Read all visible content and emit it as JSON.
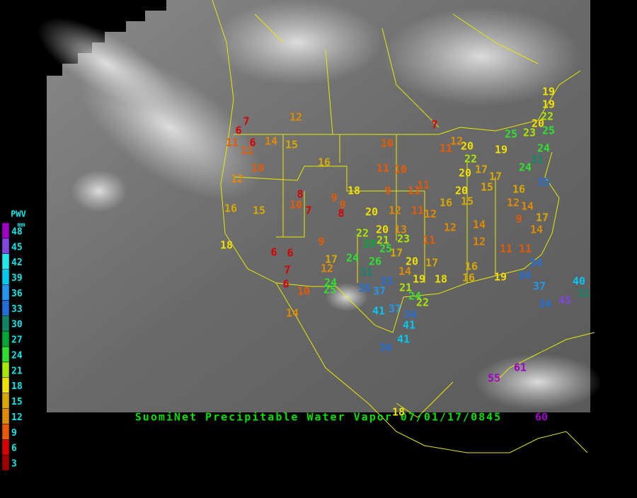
{
  "title": "SuomiNet Precipitable Water Vapor 07/01/17/0845",
  "legend": {
    "title": "PWV",
    "unit": "mm",
    "ticks": [
      3,
      6,
      9,
      12,
      15,
      18,
      21,
      24,
      27,
      30,
      33,
      36,
      39,
      42,
      45,
      48
    ],
    "colors": [
      "#a00000",
      "#d80000",
      "#e85a00",
      "#e08a00",
      "#d8a800",
      "#f0e000",
      "#a8e800",
      "#30e030",
      "#00a838",
      "#108868",
      "#2070d8",
      "#2098f0",
      "#00c8f0",
      "#20e8e8",
      "#8048e0",
      "#a000c8"
    ]
  },
  "stations": [
    12,
    6,
    7,
    6,
    11,
    11,
    14,
    15,
    10,
    12,
    16,
    10,
    7,
    11,
    12,
    20,
    22,
    19,
    25,
    23,
    19,
    19,
    22,
    20,
    25,
    24,
    31,
    24,
    11,
    10,
    20,
    17,
    17,
    35,
    16,
    15,
    8,
    10,
    7,
    9,
    18,
    9,
    8,
    9,
    11,
    11,
    20,
    15,
    16,
    12,
    14,
    17,
    9,
    14,
    16,
    15,
    20,
    12,
    11,
    12,
    12,
    14,
    18,
    6,
    6,
    7,
    6,
    10,
    9,
    17,
    12,
    22,
    20,
    13,
    21,
    23,
    11,
    28,
    25,
    24,
    26,
    17,
    20,
    17,
    12,
    11,
    11,
    34,
    31,
    14,
    19,
    18,
    16,
    16,
    19,
    34,
    33,
    35,
    37,
    24,
    25,
    21,
    24,
    22,
    37,
    40,
    45,
    34,
    37,
    34,
    41,
    41,
    41,
    34,
    14,
    55,
    61,
    18,
    60,
    31
  ]
}
